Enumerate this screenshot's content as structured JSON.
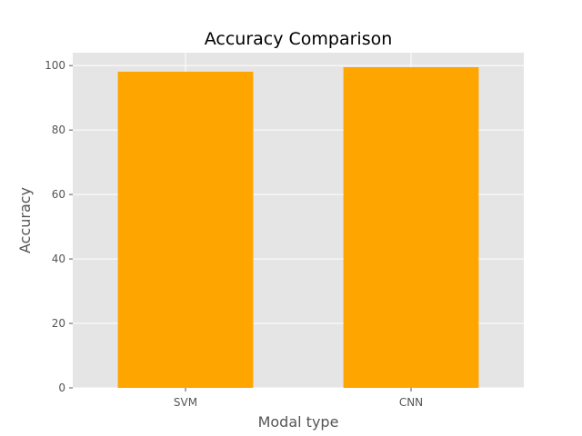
{
  "chart_data": {
    "type": "bar",
    "title": "Accuracy Comparison",
    "xlabel": "Modal type",
    "ylabel": "Accuracy",
    "categories": [
      "SVM",
      "CNN"
    ],
    "values": [
      98.1,
      99.5
    ],
    "ylim": [
      0,
      104
    ],
    "yticks": [
      0,
      20,
      40,
      60,
      80,
      100
    ],
    "grid": true,
    "bar_color": "#FFA500",
    "background_color": "#E5E5E5",
    "grid_color": "#FFFFFF"
  }
}
